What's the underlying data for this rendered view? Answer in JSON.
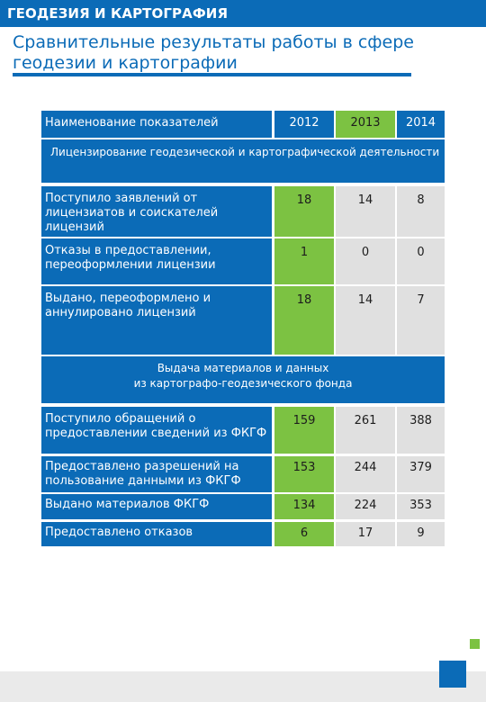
{
  "header": {
    "section_title": "ГЕОДЕЗИЯ И КАРТОГРАФИЯ",
    "page_title": "Сравнительные результаты работы в сфере геодезии и картографии"
  },
  "table": {
    "head": {
      "label": "Наименование показателей",
      "years": [
        "2012",
        "2013",
        "2014"
      ]
    },
    "section1": {
      "title": "Лицензирование геодезической и картографической деятельности",
      "rows": [
        {
          "label": "Поступило заявлений от лицензиатов и соискателей лицензий",
          "values": [
            "18",
            "14",
            "8"
          ]
        },
        {
          "label": "Отказы в предоставлении, переоформлении лицензии",
          "values": [
            "1",
            "0",
            "0"
          ]
        },
        {
          "label": "Выдано, переоформлено и аннулировано лицензий",
          "values": [
            "18",
            "14",
            "7"
          ]
        }
      ]
    },
    "section2": {
      "title_line1": "Выдача материалов и данных",
      "title_line2": "из картографо-геодезического фонда",
      "rows": [
        {
          "label": "Поступило обращений о предоставлении сведений из ФКГФ",
          "values": [
            "159",
            "261",
            "388"
          ]
        },
        {
          "label": "Предоставлено разрешений на пользование данными из ФКГФ",
          "values": [
            "153",
            "244",
            "379"
          ]
        },
        {
          "label": "Выдано материалов ФКГФ",
          "values": [
            "134",
            "224",
            "353"
          ]
        },
        {
          "label": "Предоставлено отказов",
          "values": [
            "6",
            "17",
            "9"
          ]
        }
      ]
    }
  },
  "colors": {
    "brand_blue": "#0b6bb7",
    "accent_green": "#7cc242",
    "cell_grey": "#e0e0e0"
  }
}
